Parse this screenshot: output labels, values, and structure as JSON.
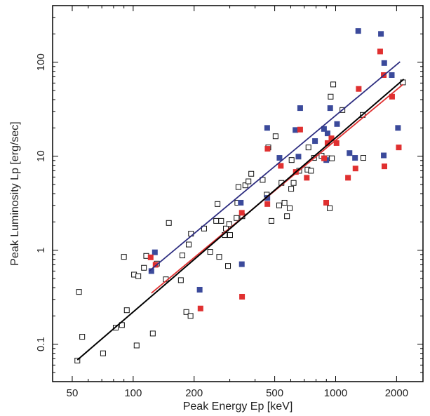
{
  "chart_data": {
    "type": "scatter",
    "xlabel": "Peak Energy  Ep [keV]",
    "ylabel": "Peak Luminosity  Lp  [erg/sec]",
    "xscale": "log",
    "yscale": "log",
    "xlim": [
      40,
      2700
    ],
    "ylim": [
      0.04,
      400
    ],
    "x_ticks": [
      50,
      100,
      200,
      500,
      1000,
      2000
    ],
    "x_tick_labels": [
      "50",
      "100",
      "200",
      "500",
      "1000",
      "2000"
    ],
    "y_ticks": [
      0.1,
      1,
      10,
      100
    ],
    "y_tick_labels": [
      "0.1",
      "1",
      "10",
      "100"
    ],
    "grid": false,
    "series": [
      {
        "marker": "open-square",
        "color": "#111111",
        "points": [
          [
            53,
            0.067
          ],
          [
            54,
            0.36
          ],
          [
            56,
            0.12
          ],
          [
            71,
            0.08
          ],
          [
            82,
            0.15
          ],
          [
            88,
            0.16
          ],
          [
            90,
            0.85
          ],
          [
            93,
            0.23
          ],
          [
            101,
            0.55
          ],
          [
            104,
            0.097
          ],
          [
            106,
            0.53
          ],
          [
            113,
            0.65
          ],
          [
            116,
            0.87
          ],
          [
            125,
            0.13
          ],
          [
            131,
            0.72
          ],
          [
            145,
            0.49
          ],
          [
            150,
            1.95
          ],
          [
            172,
            0.48
          ],
          [
            175,
            0.88
          ],
          [
            183,
            0.22
          ],
          [
            188,
            1.15
          ],
          [
            192,
            0.2
          ],
          [
            193,
            1.5
          ],
          [
            224,
            1.7
          ],
          [
            240,
            0.96
          ],
          [
            257,
            2.05
          ],
          [
            261,
            3.1
          ],
          [
            266,
            0.85
          ],
          [
            272,
            2.05
          ],
          [
            283,
            1.45
          ],
          [
            287,
            1.7
          ],
          [
            294,
            0.68
          ],
          [
            298,
            1.9
          ],
          [
            301,
            1.45
          ],
          [
            324,
            2.2
          ],
          [
            327,
            3.2
          ],
          [
            331,
            4.7
          ],
          [
            346,
            2.3
          ],
          [
            358,
            4.9
          ],
          [
            371,
            5.4
          ],
          [
            383,
            6.5
          ],
          [
            436,
            5.6
          ],
          [
            457,
            3.9
          ],
          [
            465,
            12.4
          ],
          [
            482,
            2.05
          ],
          [
            505,
            16.3
          ],
          [
            526,
            3.0
          ],
          [
            540,
            5.2
          ],
          [
            559,
            3.2
          ],
          [
            575,
            2.3
          ],
          [
            593,
            2.8
          ],
          [
            603,
            4.5
          ],
          [
            606,
            9.1
          ],
          [
            620,
            5.2
          ],
          [
            661,
            7.0
          ],
          [
            726,
            7.2
          ],
          [
            734,
            12.4
          ],
          [
            755,
            7.0
          ],
          [
            782,
            9.6
          ],
          [
            852,
            10.1
          ],
          [
            912,
            9.5
          ],
          [
            935,
            2.8
          ],
          [
            945,
            43
          ],
          [
            958,
            9.5
          ],
          [
            973,
            58
          ],
          [
            1080,
            31
          ],
          [
            1360,
            27.5
          ],
          [
            1370,
            9.6
          ],
          [
            2150,
            61
          ]
        ]
      },
      {
        "marker": "filled-square",
        "color": "#3b4a9b",
        "points": [
          [
            123,
            0.6
          ],
          [
            128,
            0.95
          ],
          [
            213,
            0.38
          ],
          [
            340,
            3.2
          ],
          [
            344,
            0.71
          ],
          [
            459,
            20
          ],
          [
            460,
            3.6
          ],
          [
            528,
            9.6
          ],
          [
            633,
            19
          ],
          [
            655,
            9.9
          ],
          [
            668,
            32.5
          ],
          [
            791,
            14.5
          ],
          [
            876,
            19.5
          ],
          [
            899,
            9.1
          ],
          [
            912,
            17.5
          ],
          [
            940,
            32.5
          ],
          [
            1016,
            22
          ],
          [
            1171,
            10.8
          ],
          [
            1247,
            9.6
          ],
          [
            1293,
            215
          ],
          [
            1674,
            200
          ],
          [
            1728,
            10.2
          ],
          [
            1738,
            98
          ],
          [
            1893,
            73
          ],
          [
            2032,
            20
          ]
        ]
      },
      {
        "marker": "filled-square",
        "color": "#e03030",
        "points": [
          [
            122,
            0.84
          ],
          [
            129,
            0.7
          ],
          [
            215,
            0.24
          ],
          [
            344,
            2.5
          ],
          [
            345,
            0.32
          ],
          [
            460,
            3.1
          ],
          [
            461,
            12
          ],
          [
            536,
            7.9
          ],
          [
            636,
            6.8
          ],
          [
            668,
            19.2
          ],
          [
            720,
            5.9
          ],
          [
            877,
            9.5
          ],
          [
            898,
            3.2
          ],
          [
            912,
            13.8
          ],
          [
            953,
            15.5
          ],
          [
            1010,
            13.8
          ],
          [
            1151,
            5.9
          ],
          [
            1253,
            7.4
          ],
          [
            1300,
            52
          ],
          [
            1659,
            130
          ],
          [
            1728,
            73
          ],
          [
            1741,
            7.8
          ],
          [
            1900,
            43
          ],
          [
            2050,
            12.4
          ]
        ]
      }
    ],
    "fit_lines": [
      {
        "color": "#2d2d80",
        "x": [
          120,
          2080
        ],
        "y": [
          0.6,
          101
        ]
      },
      {
        "color": "#e03030",
        "x": [
          123,
          2150
        ],
        "y": [
          0.35,
          58
        ]
      },
      {
        "color": "#000000",
        "x": [
          53,
          2170
        ],
        "y": [
          0.068,
          66
        ]
      }
    ]
  }
}
